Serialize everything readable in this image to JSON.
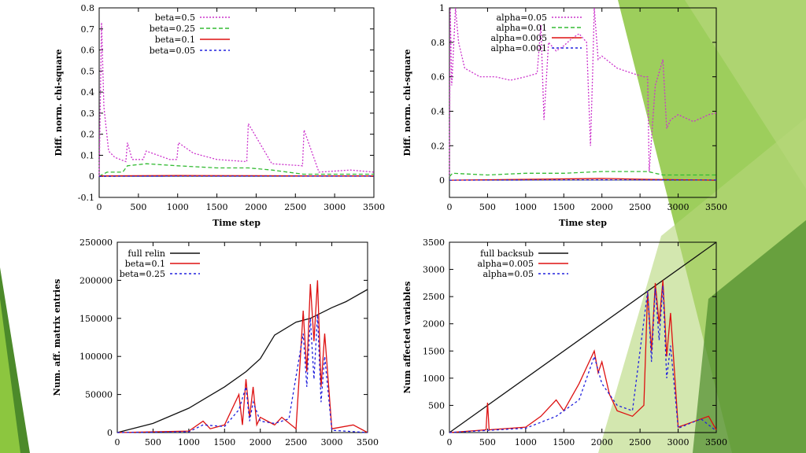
{
  "colors": {
    "slide_bg": "#ffffff",
    "accent_light": "#b5d77a",
    "accent_mid": "#8cc63f",
    "accent_dark": "#4c8a2a",
    "series_purple": "#cc33cc",
    "series_green": "#33bb33",
    "series_red": "#dd1111",
    "series_blue": "#2222dd",
    "series_black": "#111111"
  },
  "chart_data": [
    {
      "type": "line",
      "xlabel": "Time step",
      "ylabel": "Diff. norm. chi-square",
      "xlim": [
        0,
        3500
      ],
      "ylim": [
        -0.1,
        0.8
      ],
      "xticks": [
        "0",
        "500",
        "1000",
        "1500",
        "2000",
        "2500",
        "3000",
        "3500"
      ],
      "yticks": [
        "-0.1",
        "0",
        "0.1",
        "0.2",
        "0.3",
        "0.4",
        "0.5",
        "0.6",
        "0.7",
        "0.8"
      ],
      "legend_position": "top-left",
      "series": [
        {
          "name": "beta=0.5",
          "color": "#cc33cc",
          "dash": "2,2",
          "x": [
            0,
            30,
            60,
            120,
            200,
            340,
            360,
            420,
            560,
            600,
            900,
            990,
            1010,
            1200,
            1500,
            1880,
            1900,
            2200,
            2590,
            2610,
            2800,
            3200,
            3500
          ],
          "y": [
            0.0,
            0.73,
            0.33,
            0.12,
            0.09,
            0.07,
            0.16,
            0.08,
            0.08,
            0.12,
            0.08,
            0.08,
            0.16,
            0.11,
            0.08,
            0.07,
            0.25,
            0.06,
            0.05,
            0.22,
            0.02,
            0.03,
            0.02
          ]
        },
        {
          "name": "beta=0.25",
          "color": "#33bb33",
          "dash": "5,3",
          "x": [
            0,
            100,
            300,
            360,
            600,
            1000,
            1500,
            1900,
            2200,
            2600,
            2800,
            3500
          ],
          "y": [
            0.0,
            0.02,
            0.02,
            0.05,
            0.06,
            0.05,
            0.04,
            0.04,
            0.03,
            0.01,
            0.01,
            0.01
          ]
        },
        {
          "name": "beta=0.1",
          "color": "#dd1111",
          "dash": "",
          "x": [
            0,
            500,
            1000,
            2000,
            2600,
            3500
          ],
          "y": [
            0.002,
            0.003,
            0.004,
            0.003,
            0.002,
            0.002
          ]
        },
        {
          "name": "beta=0.05",
          "color": "#2222dd",
          "dash": "3,3",
          "x": [
            0,
            1000,
            2000,
            3500
          ],
          "y": [
            0.0,
            0.001,
            0.001,
            0.001
          ]
        }
      ]
    },
    {
      "type": "line",
      "xlabel": "Time step",
      "ylabel": "Diff. norm. chi-square",
      "xlim": [
        0,
        3500
      ],
      "ylim": [
        -0.1,
        1.0
      ],
      "xticks": [
        "0",
        "500",
        "1000",
        "1500",
        "2000",
        "2500",
        "3000",
        "3500"
      ],
      "yticks": [
        "0",
        "0.2",
        "0.4",
        "0.6",
        "0.8",
        "1"
      ],
      "legend_position": "top-center",
      "series": [
        {
          "name": "alpha=0.05",
          "color": "#cc33cc",
          "dash": "2,2",
          "x": [
            0,
            10,
            30,
            80,
            120,
            200,
            400,
            600,
            800,
            1000,
            1150,
            1200,
            1240,
            1300,
            1400,
            1500,
            1600,
            1700,
            1800,
            1850,
            1880,
            1900,
            1950,
            2000,
            2200,
            2400,
            2550,
            2600,
            2620,
            2700,
            2800,
            2850,
            2900,
            3000,
            3200,
            3400,
            3500
          ],
          "y": [
            0.02,
            1.0,
            0.55,
            1.0,
            0.8,
            0.65,
            0.6,
            0.6,
            0.58,
            0.6,
            0.62,
            0.9,
            0.35,
            0.8,
            0.75,
            0.78,
            0.82,
            0.85,
            0.8,
            0.2,
            0.65,
            1.0,
            0.7,
            0.72,
            0.65,
            0.62,
            0.6,
            0.6,
            0.05,
            0.55,
            0.7,
            0.3,
            0.35,
            0.38,
            0.34,
            0.38,
            0.39
          ]
        },
        {
          "name": "alpha=0.01",
          "color": "#33bb33",
          "dash": "5,3",
          "x": [
            0,
            40,
            500,
            1000,
            1500,
            2000,
            2600,
            2800,
            3500
          ],
          "y": [
            0.02,
            0.04,
            0.03,
            0.04,
            0.04,
            0.05,
            0.05,
            0.03,
            0.03
          ]
        },
        {
          "name": "alpha=0.005",
          "color": "#dd1111",
          "dash": "",
          "x": [
            0,
            1000,
            2000,
            2600,
            3500
          ],
          "y": [
            0.0,
            0.005,
            0.01,
            0.005,
            0.0
          ]
        },
        {
          "name": "alpha=0.001",
          "color": "#2222dd",
          "dash": "3,3",
          "x": [
            0,
            1000,
            2000,
            3500
          ],
          "y": [
            0.0,
            0.001,
            0.002,
            0.001
          ]
        }
      ]
    },
    {
      "type": "line",
      "xlabel": "",
      "ylabel": "Num. aff. matrix entries",
      "xlim": [
        0,
        3500
      ],
      "ylim": [
        0,
        250000
      ],
      "xticks": [
        "0",
        "500",
        "1000",
        "1500",
        "2000",
        "2500",
        "3000",
        "3500"
      ],
      "yticks": [
        "0",
        "50000",
        "100000",
        "150000",
        "200000",
        "250000"
      ],
      "legend_position": "top-left",
      "series": [
        {
          "name": "full relin",
          "color": "#111111",
          "dash": "",
          "x": [
            0,
            500,
            1000,
            1500,
            1800,
            2000,
            2200,
            2500,
            2700,
            3000,
            3200,
            3500
          ],
          "y": [
            0,
            12000,
            32000,
            60000,
            80000,
            97000,
            128000,
            145000,
            150000,
            164000,
            172000,
            188000
          ]
        },
        {
          "name": "beta=0.1",
          "color": "#dd1111",
          "dash": "",
          "x": [
            0,
            1000,
            1200,
            1300,
            1500,
            1700,
            1750,
            1800,
            1850,
            1900,
            1950,
            2000,
            2100,
            2200,
            2300,
            2500,
            2600,
            2650,
            2700,
            2750,
            2800,
            2850,
            2900,
            3000,
            3300,
            3500
          ],
          "y": [
            0,
            2000,
            15000,
            5000,
            10000,
            50000,
            10000,
            70000,
            20000,
            60000,
            10000,
            20000,
            15000,
            10000,
            20000,
            5000,
            160000,
            80000,
            195000,
            120000,
            200000,
            60000,
            130000,
            5000,
            10000,
            0
          ]
        },
        {
          "name": "beta=0.25",
          "color": "#2222dd",
          "dash": "3,3",
          "x": [
            0,
            1000,
            1200,
            1500,
            1700,
            1800,
            1850,
            1900,
            2000,
            2200,
            2400,
            2600,
            2650,
            2700,
            2750,
            2800,
            2850,
            2900,
            3000,
            3500
          ],
          "y": [
            0,
            1000,
            10000,
            8000,
            30000,
            60000,
            15000,
            40000,
            15000,
            12000,
            18000,
            130000,
            60000,
            150000,
            70000,
            155000,
            40000,
            100000,
            3000,
            0
          ]
        }
      ]
    },
    {
      "type": "line",
      "xlabel": "",
      "ylabel": "Num affected variables",
      "xlim": [
        0,
        3500
      ],
      "ylim": [
        0,
        3500
      ],
      "xticks": [
        "0",
        "500",
        "1000",
        "1500",
        "2000",
        "2500",
        "3000",
        "3500"
      ],
      "yticks": [
        "0",
        "500",
        "1000",
        "1500",
        "2000",
        "2500",
        "3000",
        "3500"
      ],
      "legend_position": "top-left",
      "series": [
        {
          "name": "full backsub",
          "color": "#111111",
          "dash": "",
          "x": [
            0,
            3500
          ],
          "y": [
            0,
            3500
          ]
        },
        {
          "name": "alpha=0.005",
          "color": "#dd1111",
          "dash": "",
          "x": [
            0,
            480,
            500,
            520,
            1000,
            1200,
            1400,
            1500,
            1700,
            1800,
            1900,
            1950,
            2000,
            2100,
            2200,
            2400,
            2550,
            2600,
            2650,
            2700,
            2750,
            2800,
            2850,
            2900,
            3000,
            3200,
            3400,
            3500
          ],
          "y": [
            0,
            50,
            550,
            50,
            100,
            300,
            600,
            400,
            900,
            1200,
            1500,
            1100,
            1300,
            700,
            400,
            300,
            500,
            2600,
            1500,
            2750,
            2000,
            2800,
            1400,
            2200,
            100,
            200,
            300,
            50
          ]
        },
        {
          "name": "alpha=0.05",
          "color": "#2222dd",
          "dash": "3,3",
          "x": [
            0,
            1000,
            1400,
            1700,
            1900,
            2000,
            2200,
            2400,
            2600,
            2650,
            2700,
            2750,
            2800,
            2850,
            2900,
            3000,
            3300,
            3500
          ],
          "y": [
            0,
            80,
            300,
            600,
            1400,
            900,
            500,
            400,
            2600,
            1300,
            2650,
            1700,
            2700,
            1000,
            1600,
            80,
            250,
            30
          ]
        }
      ]
    }
  ]
}
